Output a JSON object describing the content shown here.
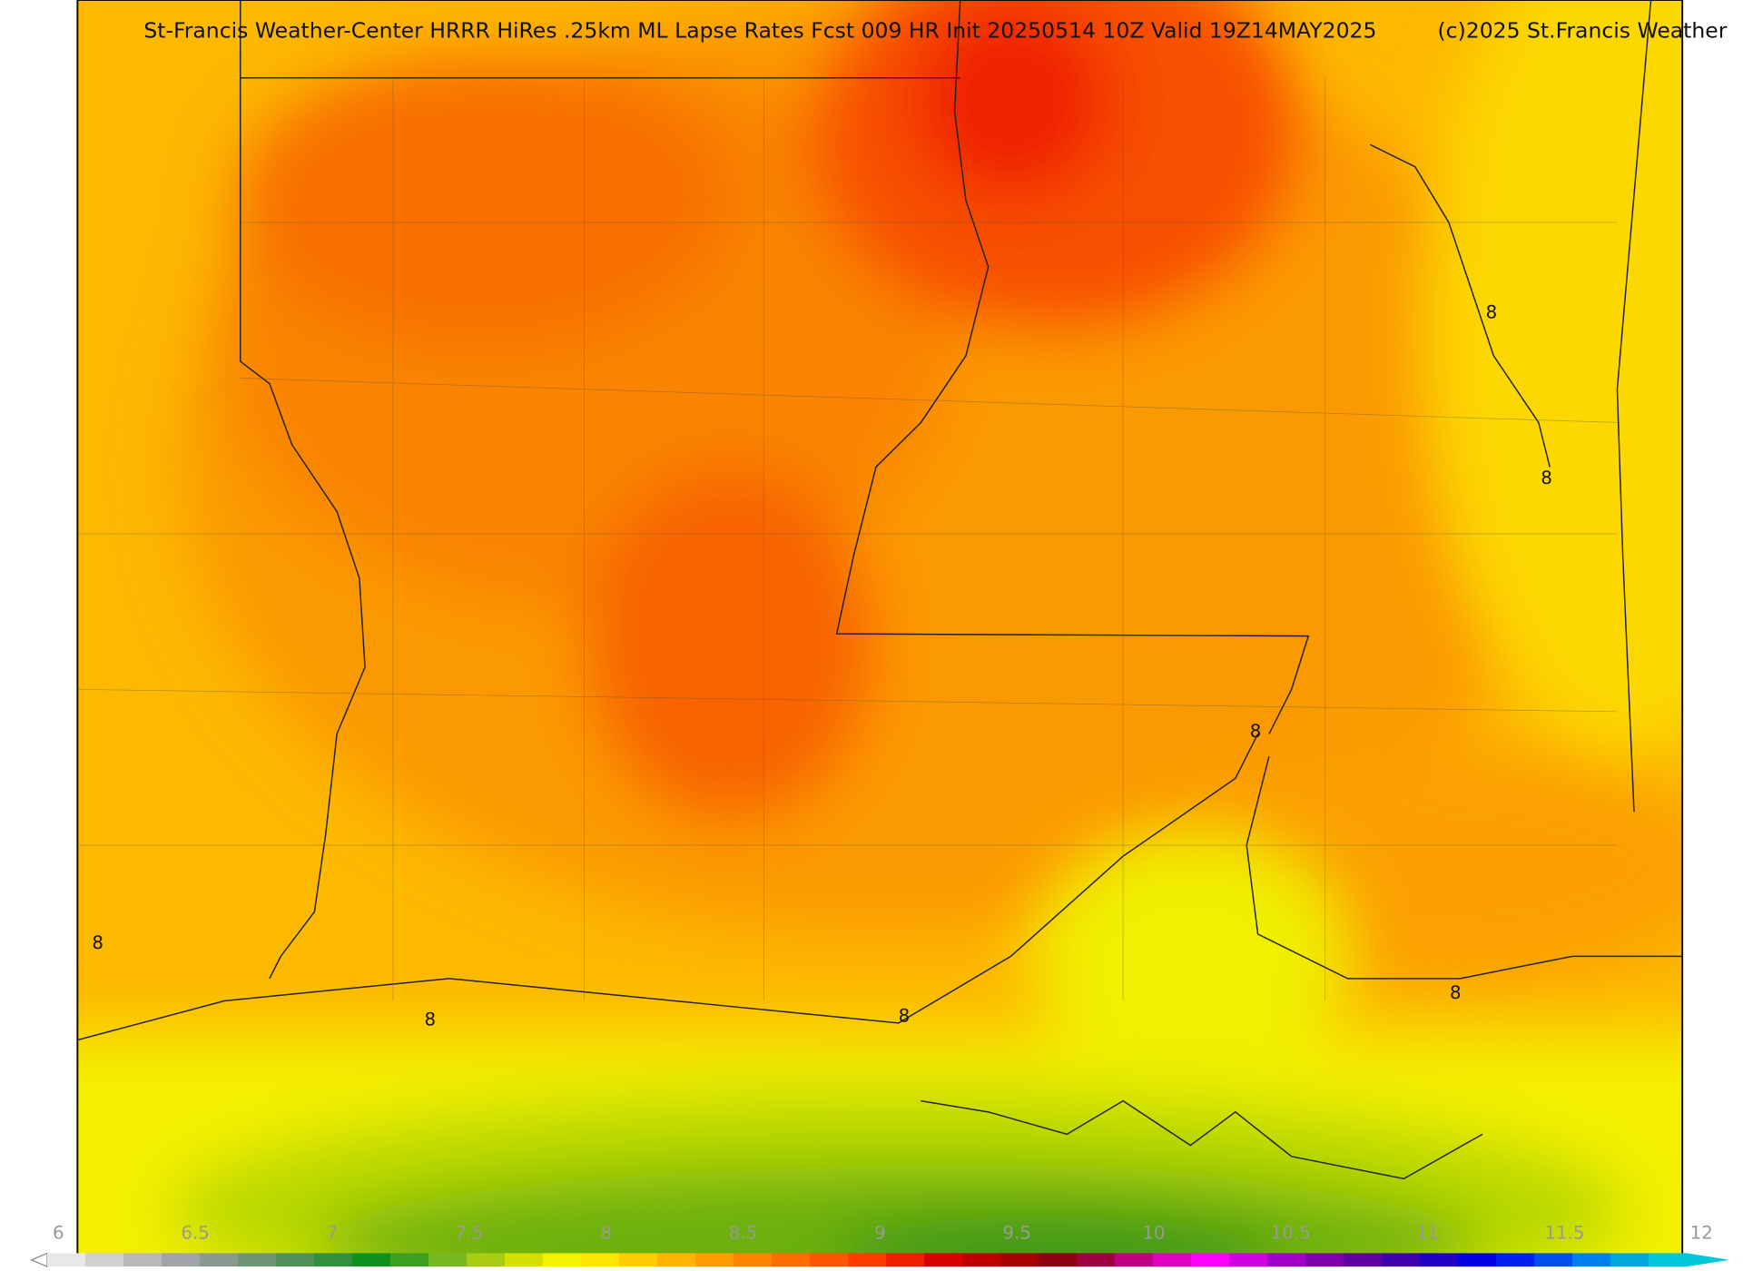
{
  "header": {
    "title": "St-Francis Weather-Center HRRR HiRes .25km ML Lapse Rates  Fcst 009 HR Init 20250514 10Z  Valid 19Z14MAY2025",
    "credit": "(c)2025 St.Francis Weather"
  },
  "contour_labels": [
    "8",
    "8",
    "8",
    "8",
    "8",
    "8",
    "8"
  ],
  "colorbar": {
    "ticks": [
      6,
      6.5,
      7,
      7.5,
      8,
      8.5,
      9,
      9.5,
      10,
      10.5,
      11,
      11.5,
      12
    ],
    "colors": [
      "#e8e8e8",
      "#d0d0d0",
      "#b8b8b8",
      "#a0a4a8",
      "#8a9a8e",
      "#6e9474",
      "#50905a",
      "#309040",
      "#10901c",
      "#3ca020",
      "#78b820",
      "#a8cc10",
      "#d4e000",
      "#f4f400",
      "#ffe600",
      "#ffcc00",
      "#ffb400",
      "#ff9c00",
      "#ff8400",
      "#ff6c00",
      "#ff5400",
      "#ff3c00",
      "#f01e00",
      "#d80000",
      "#c00000",
      "#a80000",
      "#900010",
      "#a00040",
      "#c00080",
      "#e000c0",
      "#ff00ff",
      "#d000e0",
      "#a000c8",
      "#8000b0",
      "#6000a0",
      "#4000b0",
      "#2000c8",
      "#0000e0",
      "#0020f0",
      "#0050f0",
      "#0080f0",
      "#00a8e0",
      "#00c8d8"
    ]
  }
}
